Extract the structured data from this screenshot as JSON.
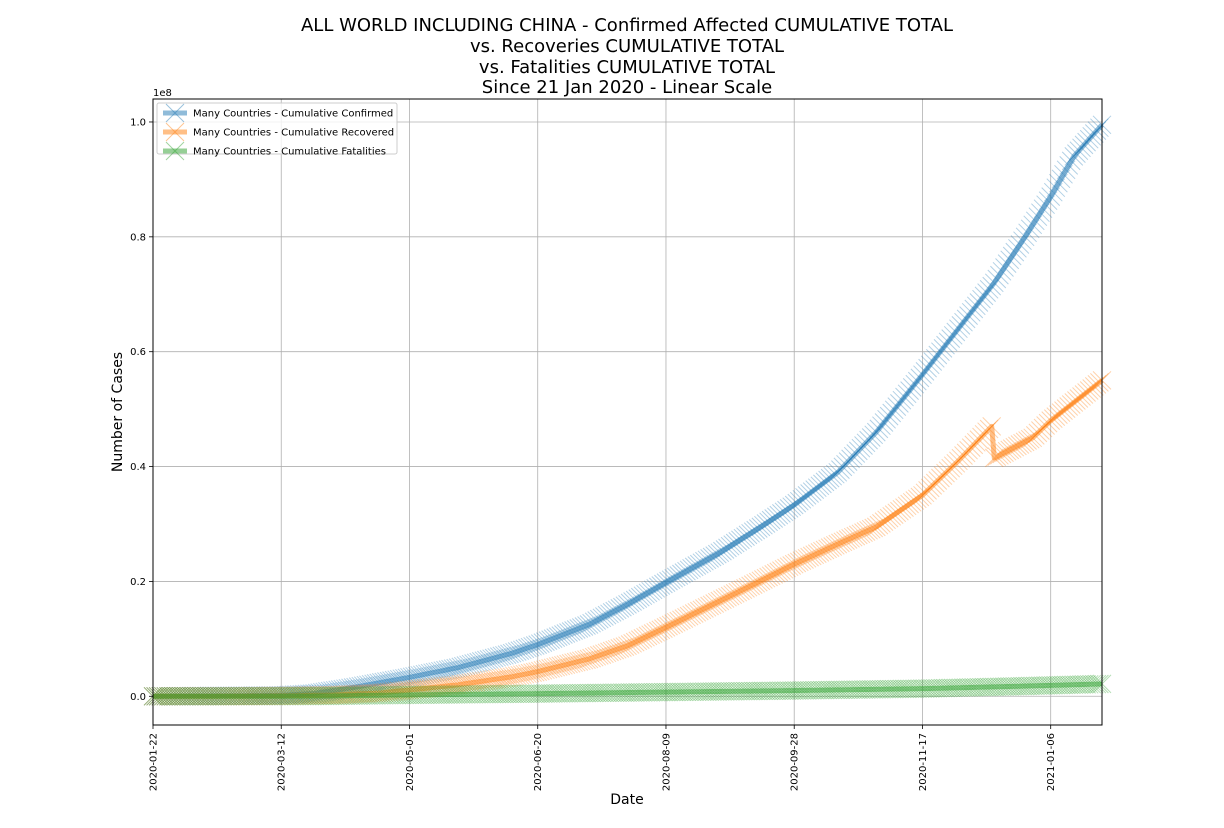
{
  "chart_data": {
    "type": "line",
    "title_lines": [
      "ALL WORLD INCLUDING CHINA - Confirmed Affected CUMULATIVE TOTAL",
      "vs. Recoveries CUMULATIVE TOTAL",
      "vs. Fatalities CUMULATIVE TOTAL",
      "Since 21 Jan 2020 - Linear Scale"
    ],
    "xlabel": "Date",
    "ylabel": "Number of Cases",
    "y_offset_label": "1e8",
    "y_scale": 100000000,
    "ylim": [
      -5000000,
      104000000
    ],
    "xlim": [
      "2020-01-22",
      "2021-01-26"
    ],
    "y_ticks": [
      0,
      20000000,
      40000000,
      60000000,
      80000000,
      100000000
    ],
    "y_tick_labels": [
      "0.0",
      "0.2",
      "0.4",
      "0.6",
      "0.8",
      "1.0"
    ],
    "x_ticks": [
      "2020-01-22",
      "2020-03-12",
      "2020-05-01",
      "2020-06-20",
      "2020-08-09",
      "2020-09-28",
      "2020-11-17",
      "2021-01-06"
    ],
    "grid": true,
    "legend_position": "upper-left",
    "series": [
      {
        "name": "Many Countries - Cumulative Confirmed",
        "color": "#1f77b4",
        "points": [
          [
            "2020-01-22",
            0
          ],
          [
            "2020-02-20",
            80000
          ],
          [
            "2020-03-12",
            150000
          ],
          [
            "2020-03-25",
            500000
          ],
          [
            "2020-04-10",
            1600000
          ],
          [
            "2020-05-01",
            3300000
          ],
          [
            "2020-05-20",
            5000000
          ],
          [
            "2020-06-10",
            7500000
          ],
          [
            "2020-06-20",
            9000000
          ],
          [
            "2020-07-10",
            12500000
          ],
          [
            "2020-07-25",
            16000000
          ],
          [
            "2020-08-09",
            19800000
          ],
          [
            "2020-08-30",
            25000000
          ],
          [
            "2020-09-15",
            29500000
          ],
          [
            "2020-09-28",
            33300000
          ],
          [
            "2020-10-15",
            39000000
          ],
          [
            "2020-10-30",
            46000000
          ],
          [
            "2020-11-17",
            56000000
          ],
          [
            "2020-12-01",
            64000000
          ],
          [
            "2020-12-15",
            72000000
          ],
          [
            "2020-12-27",
            80000000
          ],
          [
            "2021-01-06",
            87000000
          ],
          [
            "2021-01-15",
            94000000
          ],
          [
            "2021-01-26",
            99500000
          ]
        ]
      },
      {
        "name": "Many Countries - Cumulative Recovered",
        "color": "#ff7f0e",
        "points": [
          [
            "2020-01-22",
            0
          ],
          [
            "2020-02-20",
            20000
          ],
          [
            "2020-03-12",
            70000
          ],
          [
            "2020-04-01",
            200000
          ],
          [
            "2020-04-20",
            600000
          ],
          [
            "2020-05-01",
            1100000
          ],
          [
            "2020-05-20",
            2000000
          ],
          [
            "2020-06-10",
            3400000
          ],
          [
            "2020-06-20",
            4300000
          ],
          [
            "2020-07-10",
            6500000
          ],
          [
            "2020-07-25",
            8800000
          ],
          [
            "2020-08-09",
            12000000
          ],
          [
            "2020-08-25",
            15500000
          ],
          [
            "2020-09-10",
            19000000
          ],
          [
            "2020-09-28",
            23000000
          ],
          [
            "2020-10-15",
            26500000
          ],
          [
            "2020-10-30",
            29500000
          ],
          [
            "2020-11-17",
            35000000
          ],
          [
            "2020-12-01",
            41000000
          ],
          [
            "2020-12-14",
            47000000
          ],
          [
            "2020-12-15",
            41500000
          ],
          [
            "2020-12-30",
            45000000
          ],
          [
            "2021-01-06",
            48000000
          ],
          [
            "2021-01-26",
            55000000
          ]
        ]
      },
      {
        "name": "Many Countries - Cumulative Fatalities",
        "color": "#2ca02c",
        "points": [
          [
            "2020-01-22",
            0
          ],
          [
            "2020-03-12",
            10000
          ],
          [
            "2020-04-01",
            60000
          ],
          [
            "2020-05-01",
            240000
          ],
          [
            "2020-06-20",
            460000
          ],
          [
            "2020-08-09",
            730000
          ],
          [
            "2020-09-28",
            1000000
          ],
          [
            "2020-11-17",
            1330000
          ],
          [
            "2020-12-15",
            1640000
          ],
          [
            "2021-01-06",
            1900000
          ],
          [
            "2021-01-26",
            2150000
          ]
        ]
      }
    ]
  }
}
